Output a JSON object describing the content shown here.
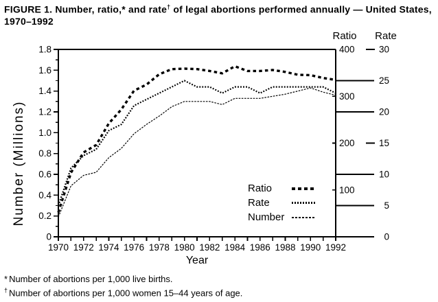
{
  "title": {
    "part1": "FIGURE 1. Number, ratio,* and rate",
    "sup": "†",
    "part2": " of legal abortions performed annually — United States, 1970–1992"
  },
  "chart": {
    "left_axis": {
      "label": "Number (Millions)",
      "ticks": [
        "0",
        "0.2",
        "0.4",
        "0.6",
        "0.8",
        "1.0",
        "1.2",
        "1.4",
        "1.6",
        "1.8"
      ],
      "range": [
        0,
        1.8
      ]
    },
    "ratio_axis": {
      "label": "Ratio",
      "ticks": [
        400,
        300,
        200,
        100
      ],
      "range": [
        0,
        400
      ]
    },
    "rate_axis": {
      "label": "Rate",
      "ticks": [
        30,
        25,
        20,
        15,
        10,
        5,
        0
      ],
      "range": [
        0,
        30
      ]
    },
    "x_axis": {
      "label": "Year",
      "range": [
        1970,
        1992
      ],
      "labeled_ticks": [
        1970,
        1972,
        1974,
        1976,
        1978,
        1980,
        1982,
        1984,
        1986,
        1988,
        1990,
        1992
      ]
    }
  },
  "legend": {
    "items": [
      {
        "label": "Ratio"
      },
      {
        "label": "Rate"
      },
      {
        "label": "Number"
      }
    ]
  },
  "footnotes": [
    {
      "marker": "*",
      "text": "Number of abortions per 1,000 live births."
    },
    {
      "marker": "†",
      "text": "Number of abortions per 1,000 women 15–44 years of age."
    }
  ],
  "colors": {
    "ink": "#000000",
    "background": "#ffffff"
  },
  "chart_data": {
    "type": "line",
    "title": "FIGURE 1. Number, ratio, and rate of legal abortions performed annually — United States, 1970–1992",
    "xlabel": "Year",
    "ylabel_left": "Number (Millions)",
    "ylabel_right_ratio": "Ratio (abortions per 1,000 live births)",
    "ylabel_right_rate": "Rate (abortions per 1,000 women 15–44 years of age)",
    "grid": false,
    "legend_position": "inside-lower-right",
    "x": [
      1970,
      1971,
      1972,
      1973,
      1974,
      1975,
      1976,
      1977,
      1978,
      1979,
      1980,
      1981,
      1982,
      1983,
      1984,
      1985,
      1986,
      1987,
      1988,
      1989,
      1990,
      1991,
      1992
    ],
    "series": [
      {
        "name": "Ratio",
        "style": "bold-dashed",
        "ylim": [
          0,
          400
        ],
        "values": [
          52,
          137,
          180,
          196,
          242,
          272,
          312,
          325,
          347,
          358,
          359,
          358,
          354,
          349,
          364,
          354,
          354,
          356,
          352,
          346,
          345,
          339,
          335
        ]
      },
      {
        "name": "Rate",
        "style": "dotted",
        "ylim": [
          0,
          30
        ],
        "values": [
          5,
          11,
          13,
          14,
          17,
          18,
          21,
          22,
          23,
          24,
          25,
          24,
          24,
          23,
          24,
          24,
          23,
          24,
          24,
          24,
          24,
          24,
          23
        ]
      },
      {
        "name": "Number",
        "style": "fine-dotted",
        "ylim": [
          0,
          1.8
        ],
        "values": [
          0.19,
          0.49,
          0.59,
          0.62,
          0.76,
          0.85,
          0.99,
          1.08,
          1.16,
          1.25,
          1.3,
          1.3,
          1.3,
          1.27,
          1.33,
          1.33,
          1.33,
          1.35,
          1.37,
          1.4,
          1.43,
          1.39,
          1.36
        ]
      }
    ]
  }
}
